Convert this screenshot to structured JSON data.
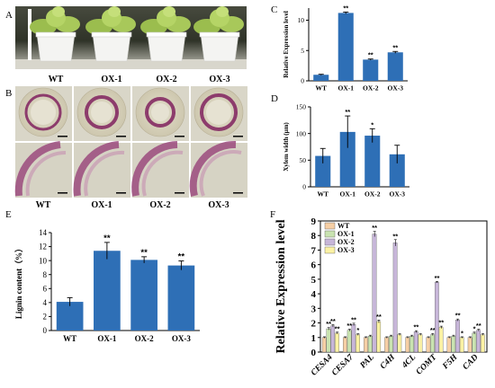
{
  "panels": {
    "A": {
      "letter": "A",
      "labels": [
        "WT",
        "OX-1",
        "OX-2",
        "OX-3"
      ]
    },
    "B": {
      "letter": "B",
      "labels": [
        "WT",
        "OX-1",
        "OX-2",
        "OX-3"
      ]
    },
    "C": {
      "letter": "C",
      "chart_data": {
        "type": "bar",
        "categories": [
          "WT",
          "OX-1",
          "OX-2",
          "OX-3"
        ],
        "values": [
          1.0,
          11.2,
          3.5,
          4.7
        ],
        "errors": [
          0.08,
          0.15,
          0.1,
          0.15
        ],
        "significance": [
          "",
          "**",
          "**",
          "**"
        ],
        "ylabel": "Relative Expression level",
        "ylim": [
          0,
          12
        ],
        "yticks": [
          0,
          5,
          10
        ],
        "bar_color": "#2e6fb6"
      }
    },
    "D": {
      "letter": "D",
      "chart_data": {
        "type": "bar",
        "categories": [
          "WT",
          "OX-1",
          "OX-2",
          "OX-3"
        ],
        "values": [
          58,
          103,
          96,
          61
        ],
        "errors": [
          14,
          30,
          13,
          17
        ],
        "significance": [
          "",
          "**",
          "*",
          ""
        ],
        "ylabel": "Xylem width (μm)",
        "ylim": [
          0,
          150
        ],
        "yticks": [
          0,
          50,
          100,
          150
        ],
        "bar_color": "#2e6fb6"
      }
    },
    "E": {
      "letter": "E",
      "chart_data": {
        "type": "bar",
        "categories": [
          "WT",
          "OX-1",
          "OX-2",
          "OX-3"
        ],
        "values": [
          4.1,
          11.4,
          10.1,
          9.3
        ],
        "errors": [
          0.6,
          1.2,
          0.45,
          0.65
        ],
        "significance": [
          "",
          "**",
          "**",
          "**"
        ],
        "ylabel": "Lignin content（%）",
        "ylim": [
          0,
          14
        ],
        "yticks": [
          0,
          2,
          4,
          6,
          8,
          10,
          12,
          14
        ],
        "bar_color": "#2e6fb6"
      }
    },
    "F": {
      "letter": "F",
      "chart_data": {
        "type": "bar",
        "categories": [
          "CESA4",
          "CESA7",
          "PAL",
          "C4H",
          "4CL",
          "COMT",
          "F5H",
          "CAD"
        ],
        "ylabel": "Relative Expression level",
        "ylim": [
          0,
          9
        ],
        "yticks": [
          0,
          1,
          2,
          3,
          4,
          5,
          6,
          7,
          8,
          9
        ],
        "legend_position": "top-left",
        "series": [
          {
            "name": "WT",
            "color": "#f6cfa5",
            "values": [
              1.0,
              1.0,
              1.0,
              1.0,
              1.0,
              1.0,
              1.0,
              1.0
            ],
            "errors": [
              0.05,
              0.05,
              0.05,
              0.05,
              0.05,
              0.05,
              0.05,
              0.05
            ],
            "significance": [
              "",
              "",
              "",
              "",
              "",
              "",
              "",
              ""
            ]
          },
          {
            "name": "OX-1",
            "color": "#c9e3b0",
            "values": [
              1.6,
              1.5,
              1.1,
              1.1,
              1.1,
              1.2,
              1.1,
              1.3
            ],
            "errors": [
              0.08,
              0.07,
              0.06,
              0.06,
              0.06,
              0.07,
              0.06,
              0.07
            ],
            "significance": [
              "**",
              "**",
              "",
              "",
              "",
              "**",
              "",
              "*"
            ]
          },
          {
            "name": "OX-2",
            "color": "#c7b6d9",
            "values": [
              1.8,
              1.9,
              8.1,
              7.5,
              1.4,
              4.8,
              2.2,
              1.5
            ],
            "errors": [
              0.08,
              0.08,
              0.18,
              0.22,
              0.07,
              0.05,
              0.07,
              0.07
            ],
            "significance": [
              "**",
              "**",
              "**",
              "**",
              "**",
              "**",
              "**",
              "**"
            ]
          },
          {
            "name": "OX-3",
            "color": "#fbf2a4",
            "values": [
              1.3,
              1.2,
              2.1,
              1.2,
              1.2,
              1.7,
              1.0,
              1.2
            ],
            "errors": [
              0.07,
              0.06,
              0.1,
              0.06,
              0.06,
              0.08,
              0.05,
              0.06
            ],
            "significance": [
              "**",
              "*",
              "**",
              "",
              "",
              "**",
              "*",
              ""
            ]
          }
        ]
      }
    }
  }
}
